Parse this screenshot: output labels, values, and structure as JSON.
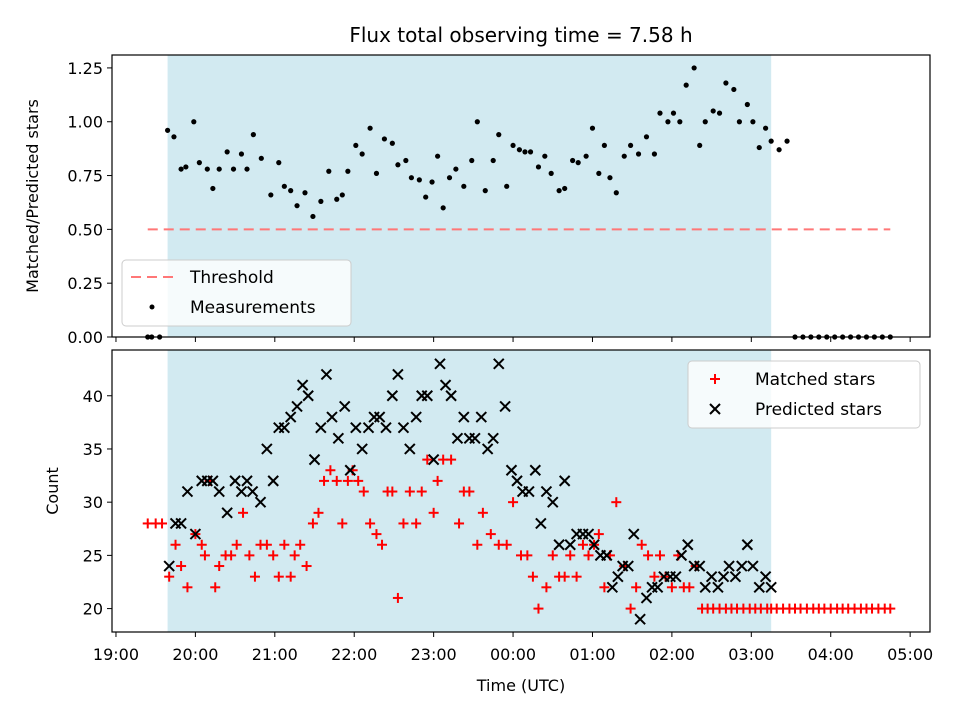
{
  "figure_title": "Flux total observing time = 7.58 h",
  "colors": {
    "shade": "#add8e6",
    "threshold": "#ff7777",
    "measurements": "#000000",
    "matched": "#ff0000",
    "predicted": "#000000"
  },
  "chart_data": [
    {
      "type": "scatter",
      "title": "Flux total observing time = 7.58 h",
      "xlabel": "",
      "ylabel": "Matched/Predicted stars",
      "x_unit": "hours since 19:00 UTC",
      "xlim": [
        -0.05,
        10.25
      ],
      "ylim": [
        0,
        1.31
      ],
      "yticks": [
        0.0,
        0.25,
        0.5,
        0.75,
        1.0,
        1.25
      ],
      "ytick_labels": [
        "0.00",
        "0.25",
        "0.50",
        "0.75",
        "1.00",
        "1.25"
      ],
      "shaded_interval": [
        0.65,
        8.25
      ],
      "legend": {
        "position": "bottom-left",
        "entries": [
          "Threshold",
          "Measurements"
        ]
      },
      "threshold": {
        "name": "Threshold",
        "y": 0.5,
        "x_range": [
          0.4,
          9.75
        ],
        "style": "dashed"
      },
      "series": [
        {
          "name": "Measurements",
          "marker": "dot",
          "x": [
            0.4,
            0.45,
            0.55,
            0.65,
            0.73,
            0.82,
            0.88,
            0.98,
            1.05,
            1.15,
            1.22,
            1.3,
            1.4,
            1.48,
            1.58,
            1.65,
            1.73,
            1.83,
            1.95,
            2.05,
            2.12,
            2.2,
            2.28,
            2.38,
            2.48,
            2.58,
            2.68,
            2.78,
            2.85,
            2.92,
            3.02,
            3.1,
            3.2,
            3.28,
            3.38,
            3.48,
            3.55,
            3.65,
            3.72,
            3.82,
            3.9,
            3.98,
            4.05,
            4.12,
            4.2,
            4.28,
            4.38,
            4.48,
            4.55,
            4.65,
            4.75,
            4.82,
            4.92,
            5.0,
            5.08,
            5.15,
            5.22,
            5.32,
            5.4,
            5.48,
            5.58,
            5.65,
            5.75,
            5.82,
            5.92,
            6.0,
            6.08,
            6.15,
            6.22,
            6.3,
            6.4,
            6.48,
            6.58,
            6.68,
            6.78,
            6.85,
            6.95,
            7.02,
            7.1,
            7.18,
            7.28,
            7.35,
            7.42,
            7.52,
            7.6,
            7.68,
            7.78,
            7.85,
            7.95,
            8.02,
            8.1,
            8.18,
            8.25,
            8.35,
            8.45,
            8.55,
            8.65,
            8.75,
            8.85,
            8.95,
            9.05,
            9.15,
            9.25,
            9.35,
            9.45,
            9.55,
            9.65,
            9.75
          ],
          "y": [
            0.0,
            0.0,
            0.0,
            0.96,
            0.93,
            0.78,
            0.79,
            1.0,
            0.81,
            0.78,
            0.69,
            0.78,
            0.86,
            0.78,
            0.85,
            0.78,
            0.94,
            0.83,
            0.66,
            0.81,
            0.7,
            0.68,
            0.61,
            0.67,
            0.56,
            0.63,
            0.77,
            0.64,
            0.66,
            0.77,
            0.89,
            0.85,
            0.97,
            0.76,
            0.92,
            0.9,
            0.8,
            0.82,
            0.74,
            0.73,
            0.65,
            0.72,
            0.84,
            0.6,
            0.74,
            0.78,
            0.7,
            0.82,
            1.0,
            0.68,
            0.82,
            0.94,
            0.7,
            0.89,
            0.87,
            0.86,
            0.86,
            0.79,
            0.84,
            0.76,
            0.68,
            0.69,
            0.82,
            0.81,
            0.84,
            0.97,
            0.76,
            0.89,
            0.74,
            0.67,
            0.84,
            0.89,
            0.85,
            0.93,
            0.85,
            1.04,
            1.0,
            1.04,
            1.0,
            1.17,
            1.25,
            0.89,
            1.0,
            1.05,
            1.04,
            1.18,
            1.15,
            1.0,
            1.08,
            1.0,
            0.88,
            0.97,
            0.91,
            0.87,
            0.91,
            0.0,
            0.0,
            0.0,
            0.0,
            0.0,
            0.0,
            0.0,
            0.0,
            0.0,
            0.0,
            0.0,
            0.0,
            0.0
          ]
        }
      ]
    },
    {
      "type": "scatter",
      "xlabel": "Time (UTC)",
      "ylabel": "Count",
      "x_unit": "hours since 19:00 UTC",
      "xlim": [
        -0.05,
        10.25
      ],
      "ylim": [
        17.8,
        44.3
      ],
      "yticks": [
        20,
        25,
        30,
        35,
        40
      ],
      "ytick_labels": [
        "20",
        "25",
        "30",
        "35",
        "40"
      ],
      "xticks": [
        0,
        1,
        2,
        3,
        4,
        5,
        6,
        7,
        8,
        9,
        10
      ],
      "xtick_labels": [
        "19:00",
        "20:00",
        "21:00",
        "22:00",
        "23:00",
        "00:00",
        "01:00",
        "02:00",
        "03:00",
        "04:00",
        "05:00"
      ],
      "shaded_interval": [
        0.65,
        8.25
      ],
      "legend": {
        "position": "top-right",
        "entries": [
          "Matched stars",
          "Predicted stars"
        ]
      },
      "series": [
        {
          "name": "Matched stars",
          "marker": "plus",
          "x": [
            0.4,
            0.5,
            0.58,
            0.67,
            0.75,
            0.82,
            0.9,
            1.0,
            1.08,
            1.12,
            1.18,
            1.25,
            1.3,
            1.38,
            1.45,
            1.52,
            1.6,
            1.68,
            1.75,
            1.82,
            1.9,
            1.98,
            2.05,
            2.12,
            2.2,
            2.25,
            2.32,
            2.4,
            2.48,
            2.55,
            2.62,
            2.7,
            2.78,
            2.85,
            2.92,
            2.98,
            3.05,
            3.12,
            3.2,
            3.28,
            3.35,
            3.42,
            3.48,
            3.55,
            3.62,
            3.7,
            3.78,
            3.85,
            3.92,
            4.0,
            4.05,
            4.12,
            4.22,
            4.32,
            4.38,
            4.45,
            4.55,
            4.62,
            4.72,
            4.82,
            4.92,
            5.0,
            5.1,
            5.18,
            5.25,
            5.32,
            5.42,
            5.5,
            5.58,
            5.65,
            5.72,
            5.8,
            5.88,
            5.95,
            6.02,
            6.08,
            6.15,
            6.22,
            6.3,
            6.4,
            6.48,
            6.55,
            6.62,
            6.7,
            6.78,
            6.85,
            6.92,
            7.0,
            7.08,
            7.15,
            7.22,
            7.3,
            7.38,
            7.45,
            7.52,
            7.6,
            7.68,
            7.75,
            7.82,
            7.9,
            7.98,
            8.05,
            8.12,
            8.2,
            8.25,
            8.32,
            8.4,
            8.48,
            8.55,
            8.62,
            8.7,
            8.78,
            8.85,
            8.92,
            9.0,
            9.08,
            9.15,
            9.22,
            9.3,
            9.38,
            9.45,
            9.52,
            9.6,
            9.68,
            9.75
          ],
          "y": [
            28,
            28,
            28,
            23,
            26,
            24,
            22,
            27,
            26,
            25,
            32,
            22,
            24,
            25,
            25,
            26,
            29,
            25,
            23,
            26,
            26,
            25,
            23,
            26,
            23,
            25,
            26,
            24,
            28,
            29,
            32,
            33,
            32,
            28,
            32,
            33,
            32,
            31,
            28,
            27,
            26,
            31,
            31,
            21,
            28,
            31,
            28,
            31,
            34,
            29,
            32,
            34,
            34,
            28,
            31,
            31,
            26,
            29,
            27,
            26,
            26,
            30,
            25,
            25,
            23,
            20,
            22,
            25,
            23,
            23,
            25,
            23,
            26,
            25,
            26,
            27,
            22,
            25,
            30,
            24,
            20,
            22,
            26,
            25,
            23,
            25,
            23,
            22,
            25,
            22,
            22,
            24,
            20,
            20,
            20,
            20,
            20,
            20,
            20,
            20,
            20,
            20,
            20,
            20,
            20,
            20,
            20,
            20,
            20,
            20,
            20,
            20,
            20,
            20,
            20,
            20,
            20,
            20,
            20,
            20,
            20,
            20,
            20,
            20,
            20
          ]
        },
        {
          "name": "Predicted stars",
          "marker": "x",
          "x": [
            0.67,
            0.82,
            0.75,
            0.9,
            1.0,
            1.08,
            1.15,
            1.22,
            1.3,
            1.4,
            1.5,
            1.58,
            1.65,
            1.72,
            1.82,
            1.9,
            1.98,
            2.05,
            2.12,
            2.2,
            2.28,
            2.35,
            2.42,
            2.5,
            2.58,
            2.65,
            2.72,
            2.8,
            2.88,
            2.95,
            3.02,
            3.1,
            3.18,
            3.25,
            3.32,
            3.4,
            3.48,
            3.55,
            3.62,
            3.7,
            3.78,
            3.85,
            3.92,
            4.0,
            4.08,
            4.15,
            4.22,
            4.3,
            4.38,
            4.45,
            4.52,
            4.6,
            4.68,
            4.75,
            4.82,
            4.9,
            4.98,
            5.05,
            5.12,
            5.2,
            5.28,
            5.35,
            5.42,
            5.5,
            5.58,
            5.65,
            5.72,
            5.8,
            5.88,
            5.95,
            6.02,
            6.1,
            6.18,
            6.25,
            6.32,
            6.38,
            6.45,
            6.52,
            6.6,
            6.68,
            6.75,
            6.82,
            6.9,
            6.98,
            7.05,
            7.12,
            7.2,
            7.28,
            7.35,
            7.42,
            7.5,
            7.58,
            7.65,
            7.72,
            7.8,
            7.88,
            7.95,
            8.02,
            8.1,
            8.18,
            8.25
          ],
          "y": [
            24,
            28,
            28,
            31,
            27,
            32,
            32,
            32,
            31,
            29,
            32,
            31,
            32,
            31,
            30,
            35,
            32,
            37,
            37,
            38,
            39,
            41,
            40,
            34,
            37,
            42,
            38,
            36,
            39,
            33,
            37,
            35,
            37,
            38,
            38,
            37,
            40,
            42,
            37,
            35,
            38,
            40,
            40,
            34,
            43,
            41,
            40,
            36,
            38,
            36,
            36,
            38,
            35,
            36,
            43,
            39,
            33,
            32,
            31,
            31,
            33,
            28,
            31,
            30,
            26,
            32,
            26,
            27,
            27,
            27,
            26,
            25,
            25,
            22,
            23,
            24,
            24,
            27,
            19,
            21,
            22,
            22,
            23,
            23,
            23,
            25,
            26,
            24,
            24,
            22,
            23,
            22,
            23,
            24,
            23,
            24,
            26,
            24,
            22,
            23,
            22
          ]
        }
      ]
    }
  ]
}
